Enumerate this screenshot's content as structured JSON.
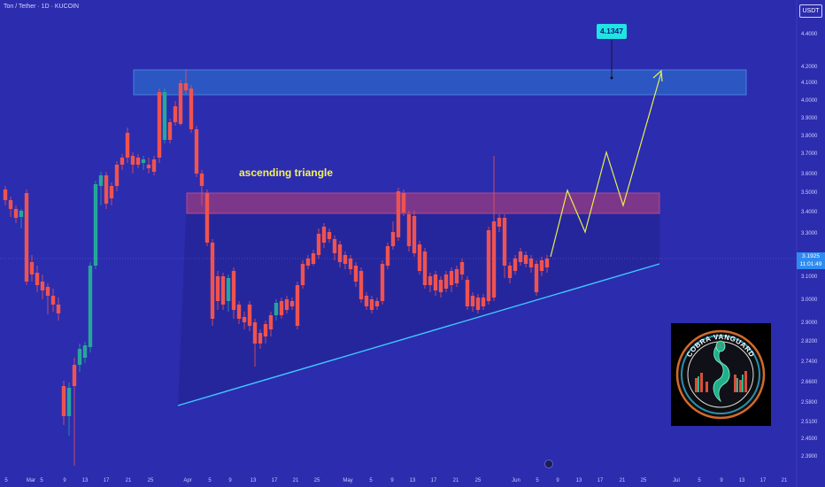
{
  "header": {
    "symbol_line": "Ton / Tether · 1D · KUCOIN"
  },
  "currency_badge": "USDT",
  "price_scale": [
    "4.4000",
    "4.2000",
    "4.1000",
    "4.0000",
    "3.9000",
    "3.8000",
    "3.7000",
    "3.6000",
    "3.5000",
    "3.4000",
    "3.3000",
    "3.1000",
    "3.0000",
    "2.9000",
    "2.8200",
    "2.7400",
    "2.6600",
    "2.5800",
    "2.5100",
    "2.4500",
    "2.3900"
  ],
  "current_price": {
    "price": "3.1925",
    "countdown": "11:01:49"
  },
  "target_label": "4.1347",
  "pattern_label": "ascending triangle",
  "time_axis": [
    "5",
    "Mar",
    "5",
    "9",
    "13",
    "17",
    "21",
    "25",
    "Apr",
    "5",
    "9",
    "13",
    "17",
    "21",
    "25",
    "May",
    "5",
    "9",
    "13",
    "17",
    "21",
    "25",
    "Jun",
    "5",
    "9",
    "13",
    "17",
    "21",
    "25",
    "Jul",
    "5",
    "9",
    "13",
    "17",
    "21"
  ],
  "logo_text": "COBRA VANGUARD",
  "colors": {
    "background": "#2c2cae",
    "bull": "#26a69a",
    "bear": "#ef5350",
    "resistance_zone": "#2d5ec6",
    "supply_zone": "#b0407a",
    "trendline": "#3ec9ff",
    "projection": "#e6f04a",
    "target_tag": "#21e3e3"
  },
  "chart_data": {
    "type": "candlestick",
    "xlabel": "",
    "ylabel": "",
    "ylim": [
      2.39,
      4.4
    ],
    "annotations": [
      {
        "type": "zone",
        "label": "",
        "ymin": 4.08,
        "ymax": 4.2
      },
      {
        "type": "zone",
        "label": "",
        "ymin": 3.42,
        "ymax": 3.51
      },
      {
        "type": "trendline",
        "label": "ascending triangle"
      },
      {
        "type": "target",
        "label": "4.1347"
      }
    ]
  }
}
